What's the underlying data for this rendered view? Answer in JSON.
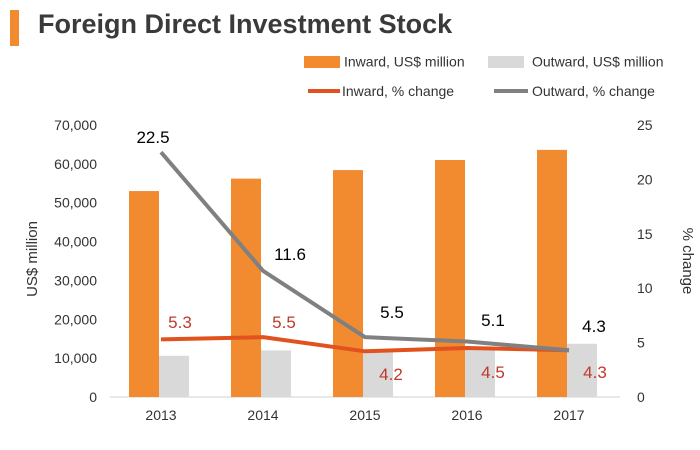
{
  "colors": {
    "inward_bar": "#F28A30",
    "outward_bar": "#D9D9D9",
    "inward_line": "#E2521F",
    "outward_line": "#808080",
    "inward_label": "#C0392B",
    "outward_label": "#000000",
    "title_accent": "#F28A30",
    "axis_text": "#333333"
  },
  "chart_data": {
    "type": "bar",
    "title": "Foreign Direct Investment Stock",
    "categories": [
      "2013",
      "2014",
      "2015",
      "2016",
      "2017"
    ],
    "series": [
      {
        "name": "Inward, US$ million",
        "kind": "bar",
        "axis": "left",
        "values": [
          53000,
          56200,
          58400,
          61000,
          63600
        ]
      },
      {
        "name": "Outward, US$ million",
        "kind": "bar",
        "axis": "left",
        "values": [
          10600,
          12000,
          11600,
          12700,
          13700
        ]
      },
      {
        "name": "Inward, % change",
        "kind": "line",
        "axis": "right",
        "values": [
          5.3,
          5.5,
          4.2,
          4.5,
          4.3
        ]
      },
      {
        "name": "Outward, % change",
        "kind": "line",
        "axis": "right",
        "values": [
          22.5,
          11.6,
          5.5,
          5.1,
          4.3
        ]
      }
    ],
    "inward_labels": [
      "5.3",
      "5.5",
      "4.2",
      "4.5",
      "4.3"
    ],
    "outward_labels": [
      "22.5",
      "11.6",
      "5.5",
      "5.1",
      "4.3"
    ],
    "ylabel": "US$ million",
    "y2label": "% change",
    "ylim": [
      0,
      70000
    ],
    "y2lim": [
      0,
      25
    ],
    "yticks": [
      "0",
      "10,000",
      "20,000",
      "30,000",
      "40,000",
      "50,000",
      "60,000",
      "70,000"
    ],
    "y2ticks": [
      "0",
      "5",
      "10",
      "15",
      "20",
      "25"
    ],
    "legend_position": "top-right",
    "grid": false
  }
}
